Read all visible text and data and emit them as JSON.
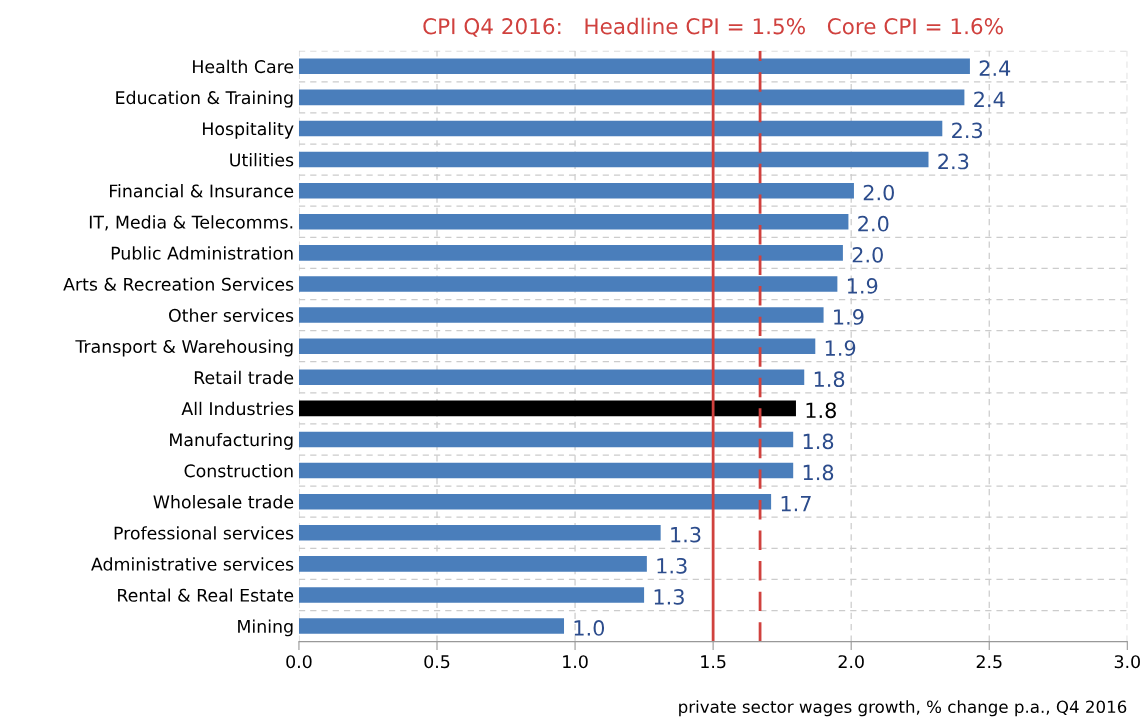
{
  "chart_data": {
    "type": "bar",
    "orientation": "horizontal",
    "title": "CPI Q4 2016:   Headline CPI = 1.5%   Core CPI = 1.6%",
    "xlabel": "private sector wages growth, % change p.a., Q4 2016",
    "categories": [
      "Health Care",
      "Education & Training",
      "Hospitality",
      "Utilities",
      "Financial & Insurance",
      "IT, Media & Telecomms.",
      "Public Administration",
      "Arts & Recreation Services",
      "Other services",
      "Transport & Warehousing",
      "Retail trade",
      "All Industries",
      "Manufacturing",
      "Construction",
      "Wholesale trade",
      "Professional services",
      "Administrative services",
      "Rental & Real Estate",
      "Mining"
    ],
    "values": [
      2.43,
      2.41,
      2.33,
      2.28,
      2.01,
      1.99,
      1.97,
      1.95,
      1.9,
      1.87,
      1.83,
      1.8,
      1.79,
      1.79,
      1.71,
      1.31,
      1.26,
      1.25,
      0.96
    ],
    "value_labels": [
      "2.4",
      "2.4",
      "2.3",
      "2.3",
      "2.0",
      "2.0",
      "2.0",
      "1.9",
      "1.9",
      "1.9",
      "1.8",
      "1.8",
      "1.8",
      "1.8",
      "1.7",
      "1.3",
      "1.3",
      "1.3",
      "1.0"
    ],
    "colors": [
      "#4a7ebb",
      "#4a7ebb",
      "#4a7ebb",
      "#4a7ebb",
      "#4a7ebb",
      "#4a7ebb",
      "#4a7ebb",
      "#4a7ebb",
      "#4a7ebb",
      "#4a7ebb",
      "#4a7ebb",
      "#000000",
      "#4a7ebb",
      "#4a7ebb",
      "#4a7ebb",
      "#4a7ebb",
      "#4a7ebb",
      "#4a7ebb",
      "#4a7ebb"
    ],
    "xlim": [
      0,
      3.0
    ],
    "xticks": [
      {
        "value": 0,
        "label": "0.0"
      },
      0.5,
      {
        "value": 1,
        "label": "1.0"
      },
      1.5,
      {
        "value": 2,
        "label": "2.0"
      },
      2.5,
      {
        "value": 3,
        "label": "3.0"
      }
    ],
    "ref_lines": [
      {
        "axis": "x",
        "value": 1.5,
        "color": "#d0413e",
        "line_style": "solid"
      },
      {
        "axis": "x",
        "value": 1.67,
        "color": "#d0413e",
        "line_style": "dashed"
      }
    ],
    "grid": true,
    "legend": false
  }
}
